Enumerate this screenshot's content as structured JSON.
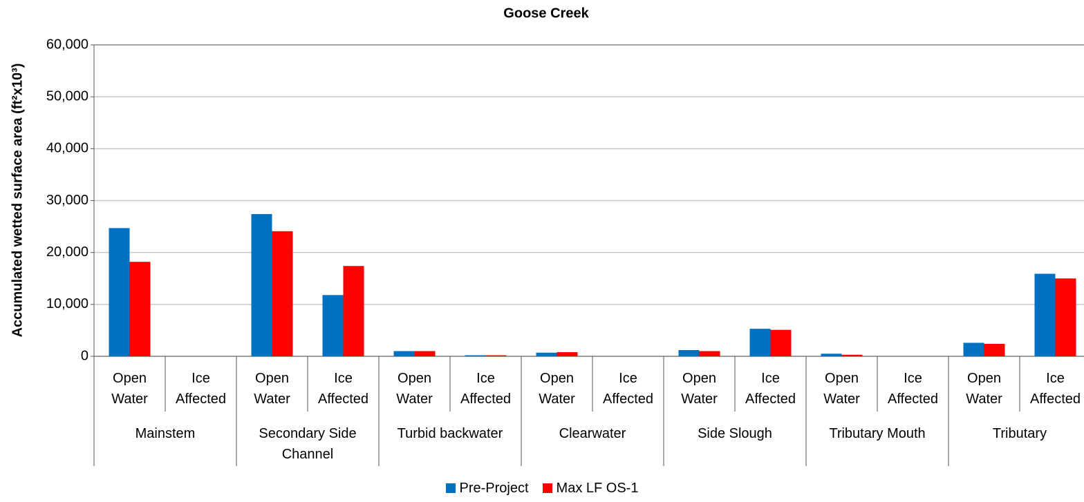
{
  "chart_data": {
    "type": "bar",
    "title": "Goose Creek",
    "y_label": "Accumulated wetted surface area (ft²x10³)",
    "categories": [
      "Open Water",
      "Ice Affected",
      "Open Water",
      "Ice Affected",
      "Open Water",
      "Ice Affected",
      "Open Water",
      "Ice Affected",
      "Open Water",
      "Ice Affected",
      "Open Water",
      "Ice Affected",
      "Open Water",
      "Ice Affected"
    ],
    "groups": [
      "Mainstem",
      "Secondary Side Channel",
      "Turbid backwater",
      "Clearwater",
      "Side Slough",
      "Tributary Mouth",
      "Tributary"
    ],
    "series": [
      {
        "name": "Pre-Project",
        "color": "#0070c0",
        "values": [
          24700,
          0,
          27400,
          11800,
          1000,
          200,
          700,
          0,
          1200,
          5300,
          500,
          0,
          2600,
          15900
        ]
      },
      {
        "name": "Max LF OS-1",
        "color": "#ff0000",
        "values": [
          18200,
          0,
          24100,
          17400,
          1000,
          200,
          800,
          0,
          1000,
          5100,
          300,
          0,
          2400,
          15000
        ]
      }
    ],
    "ylim": [
      0,
      60000
    ],
    "yticks": [
      0,
      {
        "value": 10000,
        "label": "10,000"
      },
      {
        "value": 20000,
        "label": "20,000"
      },
      {
        "value": 30000,
        "label": "30,000"
      },
      {
        "value": 40000,
        "label": "40,000"
      },
      {
        "value": 50000,
        "label": "50,000"
      },
      {
        "value": 60000,
        "label": "60,000"
      }
    ],
    "grid": true,
    "legend": "bottom"
  }
}
